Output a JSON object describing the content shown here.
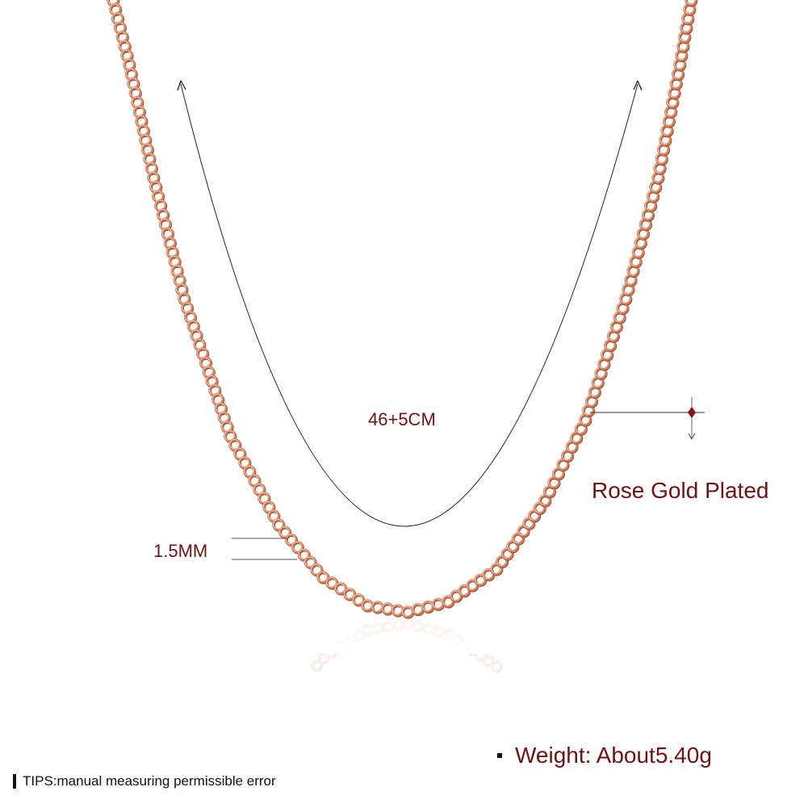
{
  "product_image": {
    "length_label": "46+5CM",
    "thickness_label": "1.5MM",
    "material_label": "Rose Gold Plated",
    "weight_label": "Weight: About5.40g",
    "tips_label": "TIPS:manual measuring permissible error",
    "colors": {
      "chain_outer": "#c9805f",
      "chain_inner": "#f3c6ae",
      "chain_shadow": "#8a3f28",
      "label_text": "#6b1414",
      "measure_line": "#222222"
    },
    "icons": [
      "arrow-up-icon",
      "arrow-down-icon",
      "diamond-marker-icon",
      "bullet-icon"
    ]
  }
}
